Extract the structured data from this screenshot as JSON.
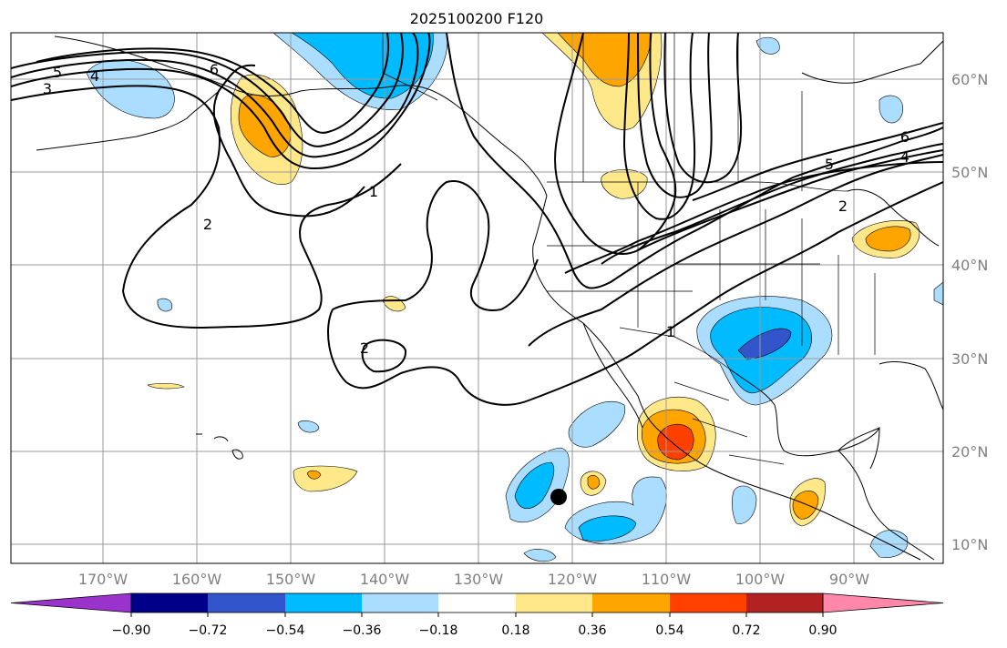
{
  "title": "2025100200 F120",
  "map": {
    "lat_labels": [
      "60°N",
      "50°N",
      "40°N",
      "30°N",
      "20°N",
      "10°N"
    ],
    "lon_labels": [
      "170°W",
      "160°W",
      "150°W",
      "140°W",
      "130°W",
      "120°W",
      "110°W",
      "100°W",
      "90°W"
    ],
    "contour_labels": [
      "5",
      "4",
      "3",
      "6",
      "2",
      "1",
      "2",
      "1",
      "5",
      "4",
      "6",
      "2"
    ],
    "marker": "storm-center"
  },
  "colorbar": {
    "colors": [
      "#9933cc",
      "#000088",
      "#3355cc",
      "#00bbff",
      "#aaddff",
      "#ffffff",
      "#ffe88a",
      "#ffa500",
      "#ff4000",
      "#b22222",
      "#ff88aa"
    ],
    "tick_labels": [
      "−0.90",
      "−0.72",
      "−0.54",
      "−0.36",
      "−0.18",
      "0.18",
      "0.36",
      "0.54",
      "0.72",
      "0.90"
    ]
  }
}
